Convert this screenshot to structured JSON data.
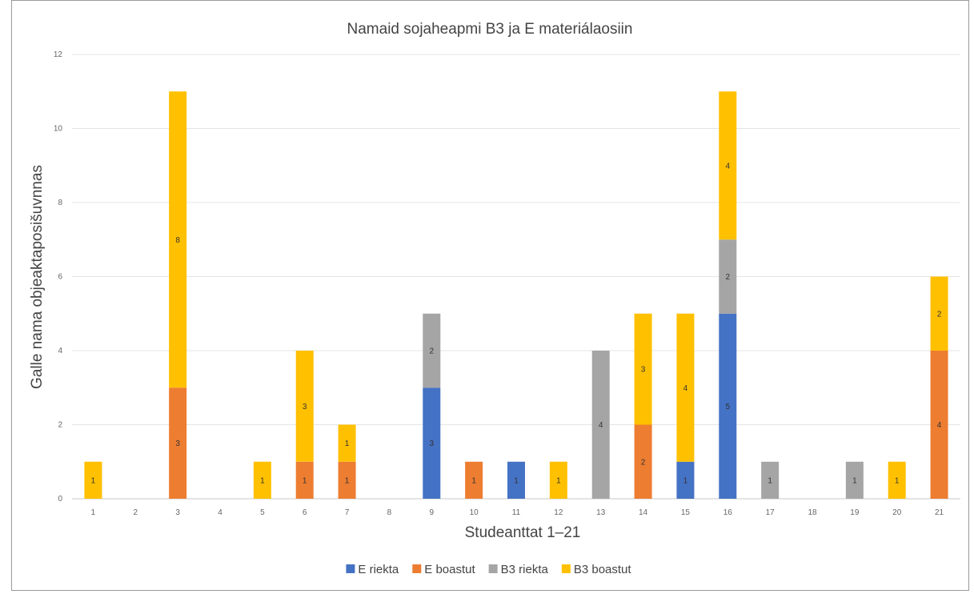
{
  "chart_data": {
    "type": "bar",
    "stacked": true,
    "title": "Namaid sojaheapmi B3 ja E materiálaosiin",
    "xlabel": "Studeanttat 1–21",
    "ylabel": "Galle nama objeaktaposišuvnnas",
    "categories": [
      "1",
      "2",
      "3",
      "4",
      "5",
      "6",
      "7",
      "8",
      "9",
      "10",
      "11",
      "12",
      "13",
      "14",
      "15",
      "16",
      "17",
      "18",
      "19",
      "20",
      "21"
    ],
    "ylim": [
      0,
      12
    ],
    "yticks": [
      0,
      2,
      4,
      6,
      8,
      10,
      12
    ],
    "grid": true,
    "legend_position": "bottom",
    "series": [
      {
        "name": "E riekta",
        "color": "#4472C4",
        "values": [
          0,
          0,
          0,
          0,
          0,
          0,
          0,
          0,
          3,
          0,
          1,
          0,
          0,
          0,
          1,
          5,
          0,
          0,
          0,
          0,
          0
        ]
      },
      {
        "name": "E boastut",
        "color": "#ED7D31",
        "values": [
          0,
          0,
          3,
          0,
          0,
          1,
          1,
          0,
          0,
          1,
          0,
          0,
          0,
          2,
          0,
          0,
          0,
          0,
          0,
          0,
          4
        ]
      },
      {
        "name": "B3 riekta",
        "color": "#A5A5A5",
        "values": [
          0,
          0,
          0,
          0,
          0,
          0,
          0,
          0,
          2,
          0,
          0,
          0,
          4,
          0,
          0,
          2,
          1,
          0,
          1,
          0,
          0
        ]
      },
      {
        "name": "B3 boastut",
        "color": "#FFC000",
        "values": [
          1,
          0,
          8,
          0,
          1,
          3,
          1,
          0,
          0,
          0,
          0,
          1,
          0,
          3,
          4,
          4,
          0,
          0,
          0,
          1,
          2
        ]
      }
    ]
  }
}
